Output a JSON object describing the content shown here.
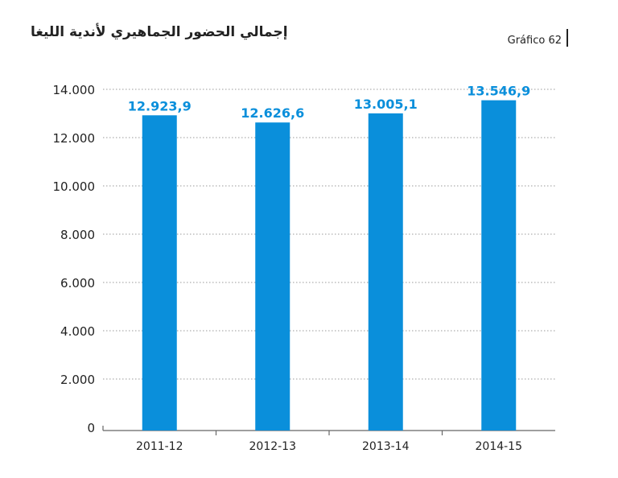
{
  "header": {
    "title": "إجمالي الحضور الجماهيري لأندية الليغا",
    "figure_label": "Gráfico 62"
  },
  "colors": {
    "bar": "#0a8fdb",
    "label": "#0a8fdb",
    "grid": "#9a9a9a",
    "axis": "#666666"
  },
  "chart_data": {
    "type": "bar",
    "categories": [
      "2011-12",
      "2012-13",
      "2013-14",
      "2014-15"
    ],
    "values": [
      12923.9,
      12626.6,
      13005.1,
      13546.9
    ],
    "data_labels": [
      "12.923,9",
      "12.626,6",
      "13.005,1",
      "13.546,9"
    ],
    "yticks": [
      0,
      2000,
      4000,
      6000,
      8000,
      10000,
      12000,
      14000
    ],
    "ytick_labels": [
      "0",
      "2.000",
      "4.000",
      "6.000",
      "8.000",
      "10.000",
      "12.000",
      "14.000"
    ],
    "ylim": [
      0,
      14000
    ],
    "grid": true,
    "title": "إجمالي الحضور الجماهيري لأندية الليغا",
    "xlabel": "",
    "ylabel": ""
  }
}
